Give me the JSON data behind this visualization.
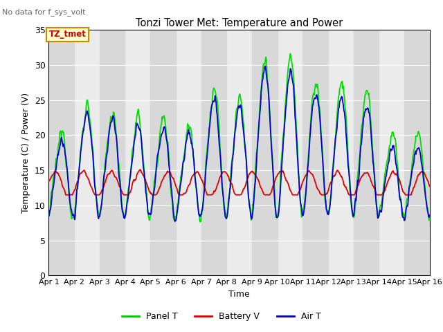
{
  "title": "Tonzi Tower Met: Temperature and Power",
  "subtitle": "No data for f_sys_volt",
  "xlabel": "Time",
  "ylabel": "Temperature (C) / Power (V)",
  "ylim": [
    0,
    35
  ],
  "yticks": [
    0,
    5,
    10,
    15,
    20,
    25,
    30,
    35
  ],
  "x_labels": [
    "Apr 1",
    "Apr 2",
    "Apr 3",
    "Apr 4",
    "Apr 5",
    "Apr 6",
    "Apr 7",
    "Apr 8",
    "Apr 9",
    "Apr 10",
    "Apr 11",
    "Apr 12",
    "Apr 13",
    "Apr 14",
    "Apr 15",
    "Apr 16"
  ],
  "legend_labels": [
    "Panel T",
    "Battery V",
    "Air T"
  ],
  "legend_colors": [
    "#00cc00",
    "#dd0000",
    "#0000bb"
  ],
  "panel_color": "#00dd00",
  "battery_color": "#dd0000",
  "air_color": "#0000cc",
  "bg_light": "#ebebeb",
  "bg_dark": "#d8d8d8",
  "grid_color": "#ffffff",
  "tztmet_box_bg": "#ffffcc",
  "tztmet_box_edge": "#cc8800",
  "tztmet_text_color": "#cc0000",
  "subtitle_color": "#666666"
}
